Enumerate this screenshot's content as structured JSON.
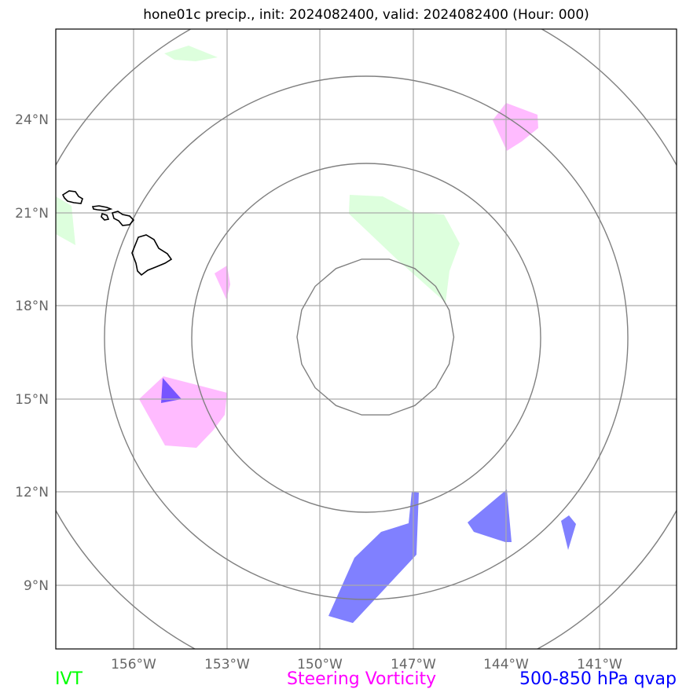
{
  "title": "hone01c precip., init: 2024082400, valid: 2024082400 (Hour: 000)",
  "axes": {
    "lat_ticks": [
      "24°N",
      "21°N",
      "18°N",
      "15°N",
      "12°N",
      "9°N"
    ],
    "lon_ticks": [
      "156°W",
      "153°W",
      "150°W",
      "147°W",
      "144°W",
      "141°W"
    ]
  },
  "legend": [
    {
      "label": "IVT",
      "color": "#00ff00"
    },
    {
      "label": "Steering Vorticity",
      "color": "#ff00ff"
    },
    {
      "label": "500-850 hPa qvap",
      "color": "#0000ff"
    }
  ],
  "fill_colors": {
    "ivt": "#ddffdd",
    "vorticity": "#ffbbff",
    "qvap": "#8080ff",
    "overlap": "#7755ff",
    "gridlines": "#aaaaaa",
    "contours": "#808080",
    "coastline": "#000000"
  }
}
